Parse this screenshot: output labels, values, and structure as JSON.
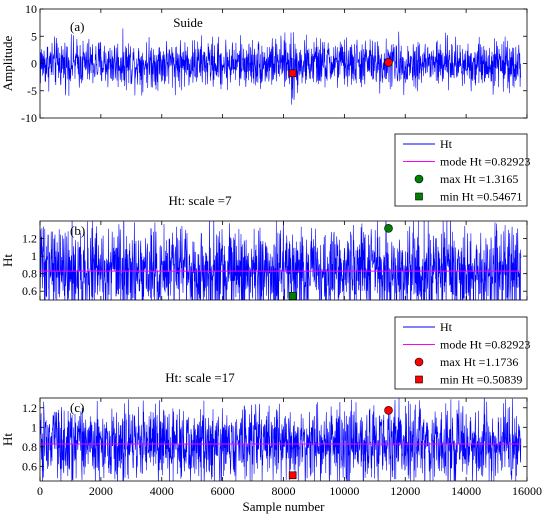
{
  "chart_data": [
    {
      "id": "a",
      "type": "line",
      "panel_tag": "(a)",
      "title": "Suide",
      "ylabel": "Amplitude",
      "xlabel": "",
      "xlim": [
        0,
        16000
      ],
      "ylim": [
        -10,
        10
      ],
      "yticks": [
        10,
        5,
        0,
        -5,
        -10
      ],
      "xticks": [],
      "series": [
        {
          "color": "#0000ff",
          "kind": "noise",
          "approx_min": -5.5,
          "approx_max": 6.5,
          "spike_at": 8300
        }
      ],
      "markers": [
        {
          "x": 8300,
          "y": -1.8,
          "shape": "square",
          "color": "#ff0000"
        },
        {
          "x": 11450,
          "y": 0.2,
          "shape": "circle",
          "color": "#ff0000"
        }
      ],
      "legend": null
    },
    {
      "id": "b",
      "type": "line",
      "panel_tag": "(b)",
      "title": "Ht: scale =7",
      "ylabel": "Ht",
      "xlabel": "",
      "xlim": [
        0,
        16000
      ],
      "ylim": [
        0.5,
        1.4
      ],
      "yticks": [
        1.2,
        1,
        0.8,
        0.6
      ],
      "xticks": [],
      "series": [
        {
          "name": "Ht",
          "color": "#0000ff",
          "kind": "noise",
          "mean": 0.83,
          "approx_min": 0.55,
          "approx_max": 1.3
        },
        {
          "name": "mode Ht =0.82923",
          "color": "#ff00ff",
          "kind": "hline",
          "value": 0.82923
        }
      ],
      "markers": [
        {
          "x": 11450,
          "y": 1.3165,
          "shape": "circle",
          "color": "#008000",
          "label": "max Ht =1.3165"
        },
        {
          "x": 8300,
          "y": 0.54671,
          "shape": "square",
          "color": "#008000",
          "label": "min Ht =0.54671"
        }
      ],
      "legend": {
        "position": "top-right-outside",
        "entries": [
          {
            "label": "Ht",
            "type": "line",
            "color": "#0000ff"
          },
          {
            "label": "mode Ht =0.82923",
            "type": "line",
            "color": "#ff00ff"
          },
          {
            "label": "max Ht =1.3165",
            "type": "circle",
            "color": "#008000"
          },
          {
            "label": "min Ht =0.54671",
            "type": "square",
            "color": "#008000"
          }
        ]
      }
    },
    {
      "id": "c",
      "type": "line",
      "panel_tag": "(c)",
      "title": "Ht: scale =17",
      "ylabel": "Ht",
      "xlabel": "Sample number",
      "xlim": [
        0,
        16000
      ],
      "ylim": [
        0.45,
        1.3
      ],
      "yticks": [
        1.2,
        1,
        0.8,
        0.6
      ],
      "xticks": [
        0,
        2000,
        4000,
        6000,
        8000,
        10000,
        12000,
        14000,
        16000
      ],
      "series": [
        {
          "name": "Ht",
          "color": "#0000ff",
          "kind": "noise",
          "mean": 0.83,
          "approx_min": 0.51,
          "approx_max": 1.17
        },
        {
          "name": "mode Ht =0.82923",
          "color": "#ff00ff",
          "kind": "hline",
          "value": 0.82923
        }
      ],
      "markers": [
        {
          "x": 11450,
          "y": 1.1736,
          "shape": "circle",
          "color": "#ff0000",
          "label": "max Ht =1.1736"
        },
        {
          "x": 8300,
          "y": 0.50839,
          "shape": "square",
          "color": "#ff0000",
          "label": "min Ht =0.50839"
        }
      ],
      "legend": {
        "position": "top-right-outside",
        "entries": [
          {
            "label": "Ht",
            "type": "line",
            "color": "#0000ff"
          },
          {
            "label": "mode Ht =0.82923",
            "type": "line",
            "color": "#ff00ff"
          },
          {
            "label": "max Ht =1.1736",
            "type": "circle",
            "color": "#ff0000"
          },
          {
            "label": "min Ht =0.50839",
            "type": "square",
            "color": "#ff0000"
          }
        ]
      }
    }
  ]
}
